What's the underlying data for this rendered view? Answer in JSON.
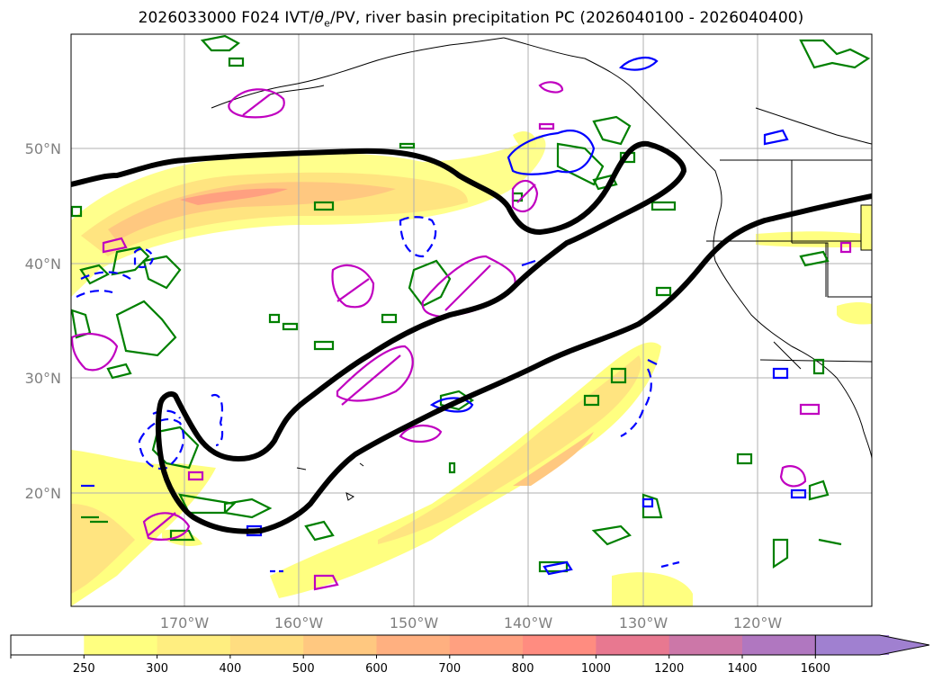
{
  "title": {
    "prefix": "2026033000 F024 IVT/",
    "theta": "θ",
    "sub": "e",
    "suffix": "/PV, river basin precipitation PC (2026040100 - 2026040400)"
  },
  "map": {
    "region": "North-East Pacific and western North America",
    "lat_range": [
      10,
      60
    ],
    "lon_range": [
      -180,
      -110
    ],
    "lat_labels": [
      "20°N",
      "30°N",
      "40°N",
      "50°N"
    ],
    "lon_labels": [
      "170°W",
      "160°W",
      "150°W",
      "140°W",
      "130°W",
      "120°W"
    ],
    "contour_colors": {
      "ivt_black": "#000000",
      "pv_magenta": "#c000c0",
      "theta_blue": "#0000ff",
      "precip_green": "#008000"
    }
  },
  "colorbar": {
    "ticks": [
      "250",
      "300",
      "400",
      "500",
      "600",
      "700",
      "800",
      "1000",
      "1200",
      "1400",
      "1600"
    ],
    "colors": [
      "#ffffff",
      "#ffff80",
      "#ffee80",
      "#ffdd80",
      "#ffc880",
      "#ffb080",
      "#ffa080",
      "#ff8c80",
      "#e87890",
      "#cc77a8",
      "#b077c0",
      "#a080d0"
    ]
  }
}
